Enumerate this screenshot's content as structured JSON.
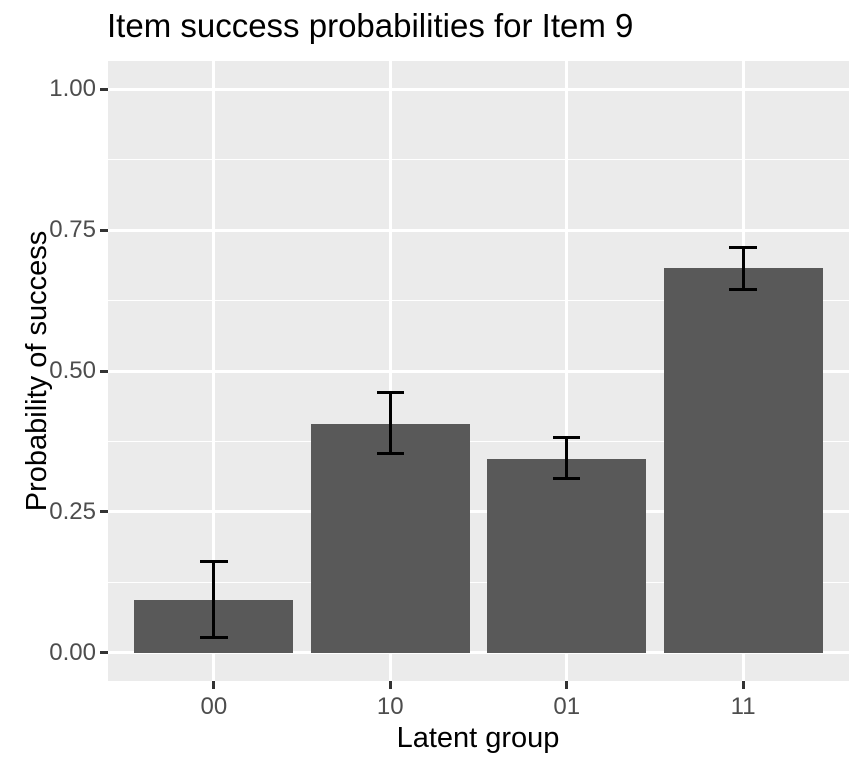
{
  "chart_data": {
    "type": "bar",
    "title": "Item success probabilities for Item 9",
    "xlabel": "Latent group",
    "ylabel": "Probability of success",
    "categories": [
      "00",
      "10",
      "01",
      "11"
    ],
    "values": [
      0.094,
      0.406,
      0.344,
      0.682
    ],
    "error_low": [
      0.027,
      0.353,
      0.309,
      0.644
    ],
    "error_high": [
      0.162,
      0.461,
      0.382,
      0.719
    ],
    "y_tick_labels": [
      "0.00",
      "0.25",
      "0.50",
      "0.75",
      "1.00"
    ],
    "y_tick_values": [
      0,
      0.25,
      0.5,
      0.75,
      1.0
    ],
    "y_minor_values": [
      0.125,
      0.375,
      0.625,
      0.875
    ],
    "ylim": [
      0,
      1
    ],
    "legend_position": "none",
    "grid": "horizontal major+minor, vertical major at category centers",
    "style": "ggplot2 grey theme, error bars"
  },
  "colors": {
    "page_bg": "#FFFFFF",
    "panel_bg": "#EBEBEB",
    "grid": "#FFFFFF",
    "bar_fill": "#595959",
    "errorbar": "#000000",
    "tick_mark": "#333333",
    "axis_text": "#4D4D4D",
    "axis_title_text": "#000000",
    "title_text": "#000000"
  }
}
